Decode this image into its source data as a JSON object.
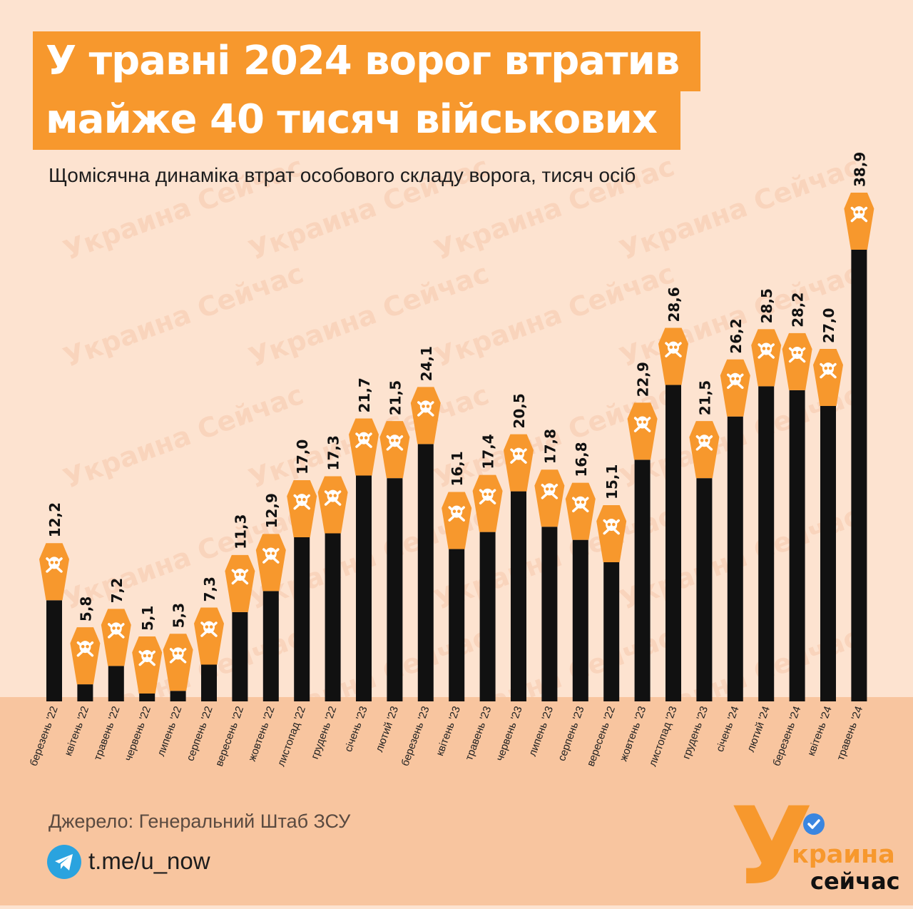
{
  "header": {
    "title_line1": "У травні 2024 ворог втратив",
    "title_line2": "майже 40 тисяч військових",
    "subtitle": "Щомісячна динаміка втрат особового складу ворога, тисяч осіб"
  },
  "footer": {
    "source": "Джерело: Генеральний Штаб ЗСУ",
    "telegram_link": "t.me/u_now",
    "logo_top": "краина",
    "logo_bottom": "сейчас",
    "logo_letter": "У"
  },
  "watermark": "Украина Сейчас",
  "colors": {
    "accent": "#f7982d",
    "bar": "#111111",
    "background": "#fde3d0",
    "band": "#f8c59f"
  },
  "icons": [
    "skull-crossbones-icon",
    "telegram-icon",
    "verified-check-icon"
  ],
  "chart_data": {
    "type": "bar",
    "title": "У травні 2024 ворог втратив майже 40 тисяч військових",
    "subtitle": "Щомісячна динаміка втрат особового складу ворога, тисяч осіб",
    "categories": [
      "березень '22",
      "квітень '22",
      "травень '22",
      "червень '22",
      "липень '22",
      "серпень '22",
      "вересень '22",
      "жовтень '22",
      "листопад '22",
      "грудень '22",
      "січень '23",
      "лютий '23",
      "березень '23",
      "квітень '23",
      "травень '23",
      "червень '23",
      "липень '23",
      "серпень '23",
      "вересень '22",
      "жовтень '23",
      "листопад '23",
      "грудень '23",
      "січень '24",
      "лютий '24",
      "березень '24",
      "квітень '24",
      "травень '24"
    ],
    "values": [
      12.2,
      5.8,
      7.2,
      5.1,
      5.3,
      7.3,
      11.3,
      12.9,
      17.0,
      17.3,
      21.7,
      21.5,
      24.1,
      16.1,
      17.4,
      20.5,
      17.8,
      16.8,
      15.1,
      22.9,
      28.6,
      21.5,
      26.2,
      28.5,
      28.2,
      27.0,
      38.9
    ],
    "labels": [
      "12,2",
      "5,8",
      "7,2",
      "5,1",
      "5,3",
      "7,3",
      "11,3",
      "12,9",
      "17,0",
      "17,3",
      "21,7",
      "21,5",
      "24,1",
      "16,1",
      "17,4",
      "20,5",
      "17,8",
      "16,8",
      "15,1",
      "22,9",
      "28,6",
      "21,5",
      "26,2",
      "28,5",
      "28,2",
      "27,0",
      "38,9"
    ],
    "ylim": [
      4.5,
      38.9
    ],
    "grid": false,
    "legend": "none"
  }
}
